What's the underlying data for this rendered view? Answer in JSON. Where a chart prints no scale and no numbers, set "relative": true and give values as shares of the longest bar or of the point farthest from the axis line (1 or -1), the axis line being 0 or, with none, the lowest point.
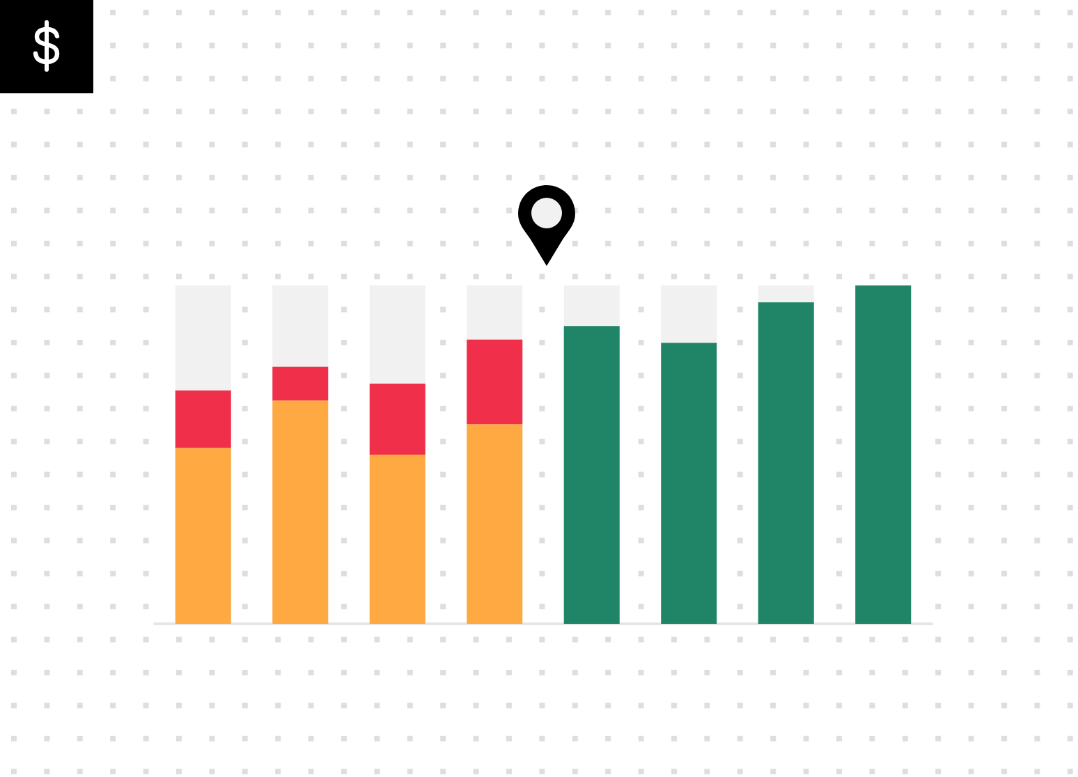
{
  "chart_data": {
    "type": "bar",
    "stacked": true,
    "relative": true,
    "categories": [
      null,
      null,
      null,
      null,
      null,
      null,
      null,
      null
    ],
    "series": [
      {
        "color": "#ffa942",
        "values": [
          0.52,
          0.66,
          0.5,
          0.59,
          null,
          null,
          null,
          null
        ]
      },
      {
        "color": "#f0304a",
        "values": [
          0.17,
          0.1,
          0.21,
          0.25,
          null,
          null,
          null,
          null
        ]
      },
      {
        "color": "#1f8566",
        "values": [
          null,
          null,
          null,
          null,
          0.88,
          0.83,
          0.95,
          1
        ]
      }
    ]
  }
}
